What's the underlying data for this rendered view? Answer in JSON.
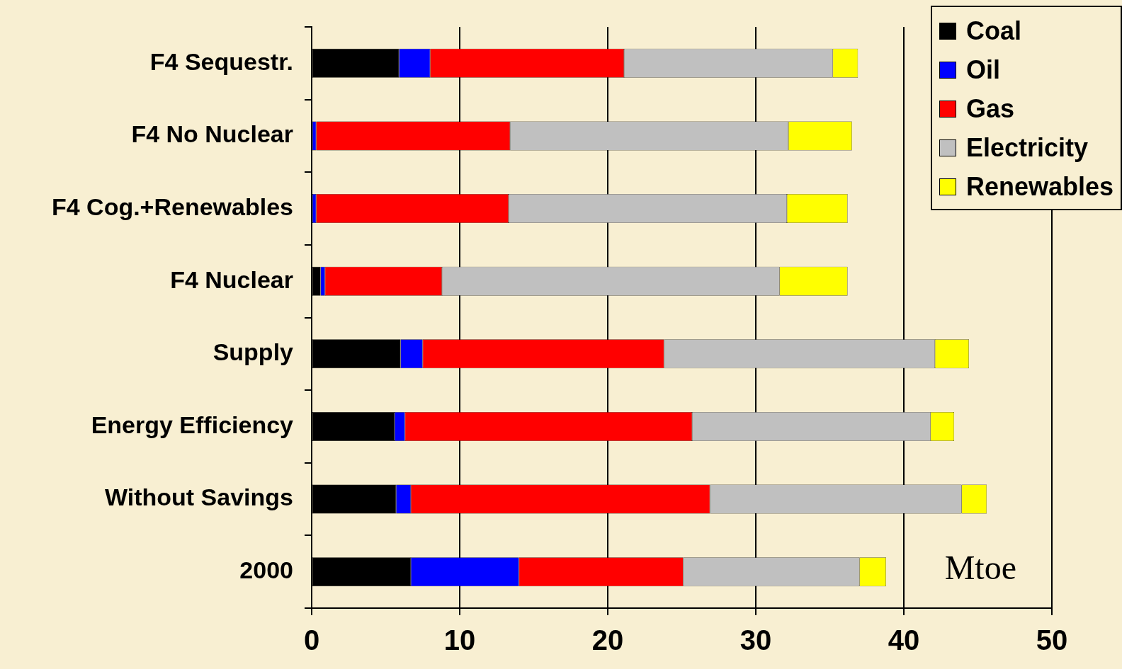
{
  "chart_data": {
    "type": "bar",
    "orientation": "horizontal",
    "stacked": true,
    "categories": [
      "F4 Sequestr.",
      "F4 No Nuclear",
      "F4 Cog.+Renewables",
      "F4 Nuclear",
      "Supply",
      "Energy Efficiency",
      "Without Savings",
      "2000"
    ],
    "series": [
      {
        "name": "Coal",
        "color": "#000000",
        "values": [
          5.9,
          0,
          0,
          0.6,
          6.0,
          5.6,
          5.7,
          6.7
        ]
      },
      {
        "name": "Oil",
        "color": "#0000ff",
        "values": [
          2.1,
          0.3,
          0.3,
          0.3,
          1.5,
          0.7,
          1.0,
          7.3
        ]
      },
      {
        "name": "Gas",
        "color": "#ff0000",
        "values": [
          13.1,
          13.1,
          13.0,
          7.9,
          16.3,
          19.4,
          20.2,
          11.1
        ]
      },
      {
        "name": "Electricity",
        "color": "#c0c0c0",
        "values": [
          14.1,
          18.8,
          18.8,
          22.8,
          18.3,
          16.1,
          17.0,
          11.9
        ]
      },
      {
        "name": "Renewables",
        "color": "#ffff00",
        "values": [
          1.7,
          4.3,
          4.1,
          4.6,
          2.3,
          1.6,
          1.7,
          1.8
        ]
      }
    ],
    "xlim": [
      0,
      50
    ],
    "xticks": [
      0,
      10,
      20,
      30,
      40,
      50
    ],
    "grid": "x",
    "legend": "top right",
    "annotations": [
      "Mtoe"
    ]
  }
}
